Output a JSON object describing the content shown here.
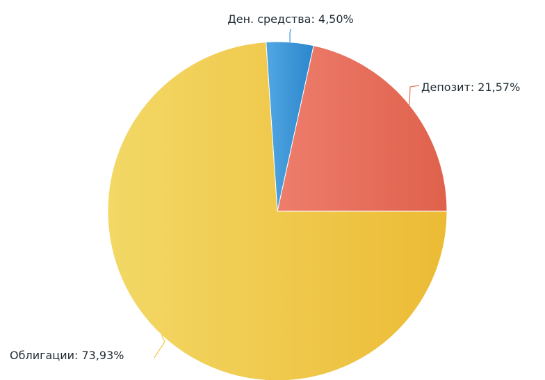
{
  "chart_data": {
    "type": "pie",
    "title": "",
    "start_angle_deg": 0,
    "direction": "counterclockwise",
    "slices": [
      {
        "key": "deposit",
        "name": "Депозит",
        "value": 21.57,
        "value_text": "21,57%",
        "label": "Депозит: 21,57%",
        "color": "#e9735e",
        "gradient": [
          "#ee7d6c",
          "#df614c"
        ]
      },
      {
        "key": "cash",
        "name": "Ден. средства",
        "value": 4.5,
        "value_text": "4,50%",
        "label": "Ден. средства: 4,50%",
        "color": "#3a95d8",
        "gradient": [
          "#52a7e2",
          "#2b86cc"
        ]
      },
      {
        "key": "bonds",
        "name": "Облигации",
        "value": 73.93,
        "value_text": "73,93%",
        "label": "Облигации: 73,93%",
        "color": "#efc542",
        "gradient": [
          "#f3d866",
          "#ecbb35"
        ]
      }
    ],
    "legend": "none",
    "grid": false
  }
}
